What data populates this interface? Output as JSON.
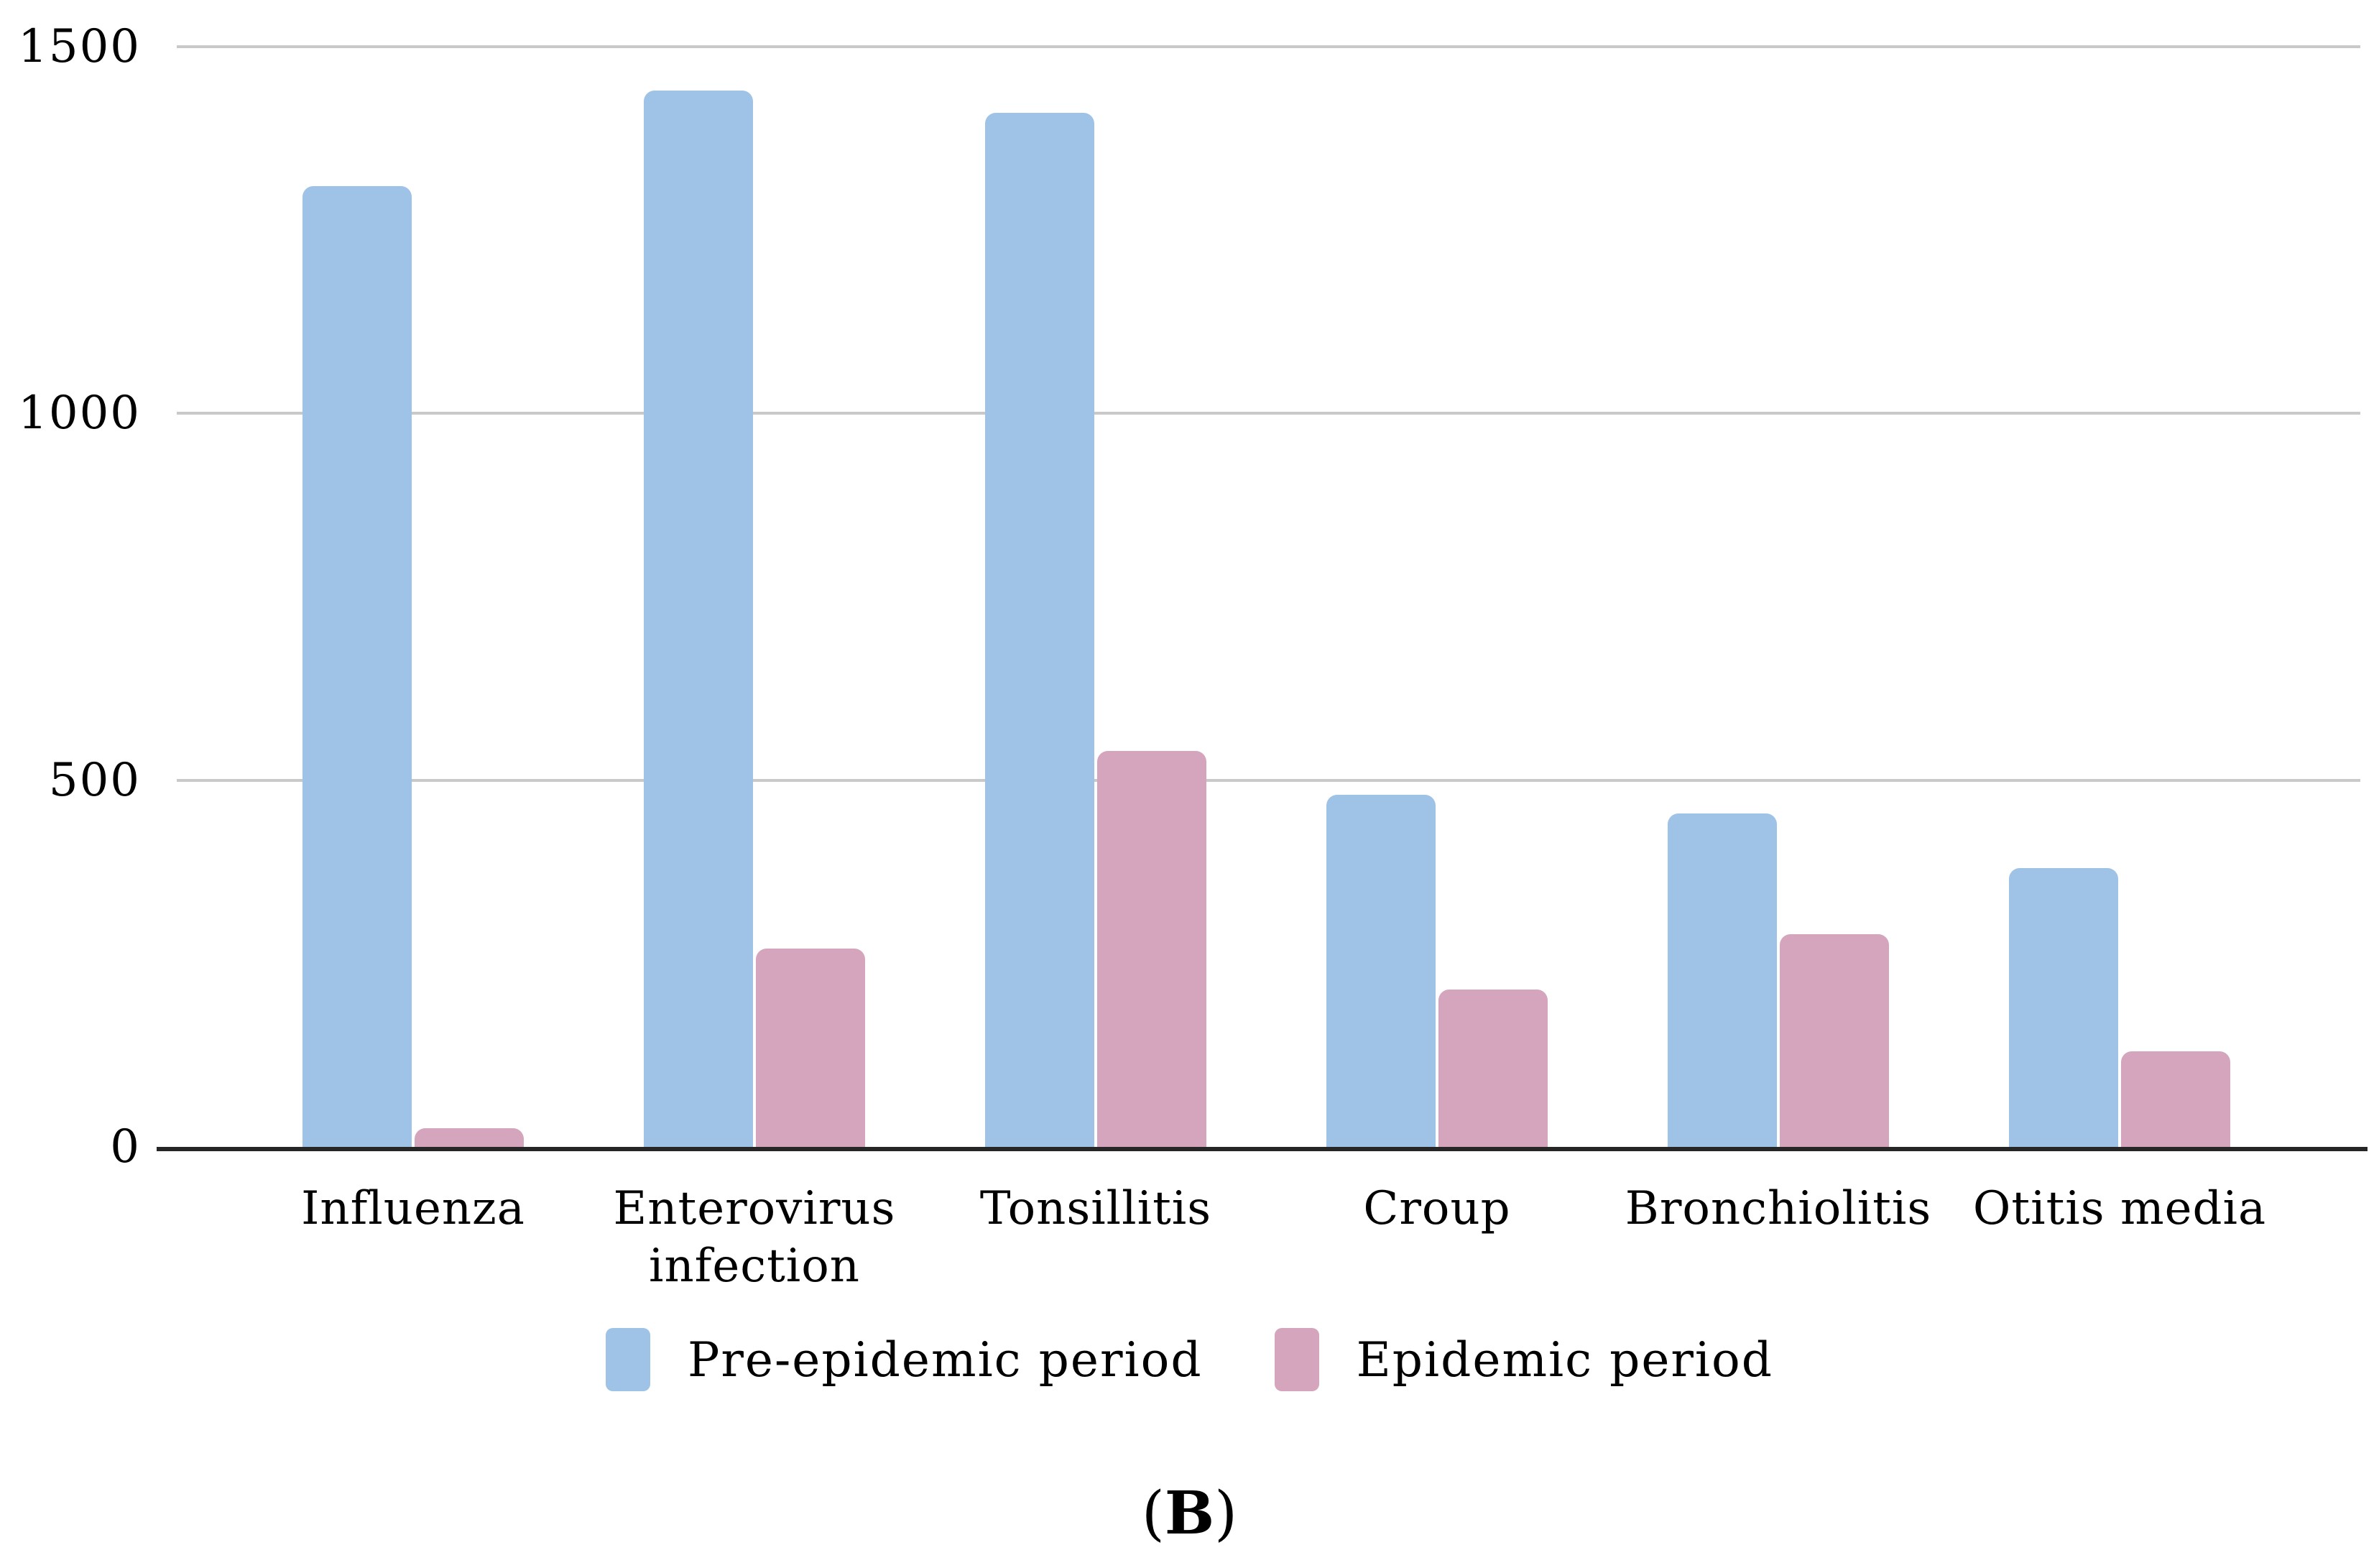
{
  "caption": {
    "open": "(",
    "label": "B",
    "close": ")"
  },
  "colors": {
    "background": "#FFFFFF",
    "gridline": "#C9C9C9",
    "axis": "#262626",
    "pre_epidemic_blue": "#9EC3E7",
    "epidemic_pink": "#D5A4BD"
  },
  "y_axis": {
    "tick_labels": [
      "0",
      "500",
      "1000",
      "1500"
    ]
  },
  "chart_data": {
    "type": "bar",
    "title": "",
    "xlabel": "",
    "ylabel": "",
    "categories": [
      "Influenza",
      "Enterovirus infection",
      "Tonsillitis",
      "Croup",
      "Bronchiolitis",
      "Otitis media"
    ],
    "series": [
      {
        "name": "Pre-epidemic period",
        "color": "#9EC3E7",
        "values": [
          1310,
          1440,
          1410,
          480,
          455,
          380
        ]
      },
      {
        "name": "Epidemic period",
        "color": "#D5A4BD",
        "values": [
          25,
          270,
          540,
          215,
          290,
          130
        ]
      }
    ],
    "ylim": [
      0,
      1500
    ],
    "yticks": [
      0,
      500,
      1000,
      1500
    ],
    "grid": true,
    "gridlines": "horizontal",
    "legend_position": "bottom",
    "panel_label": "(B)"
  }
}
